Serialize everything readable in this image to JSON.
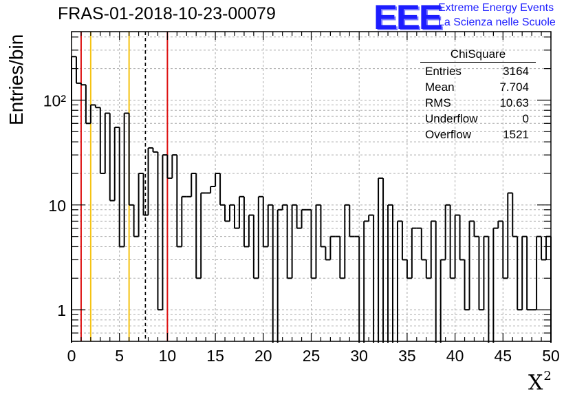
{
  "chart_data": {
    "type": "histogram",
    "title": "FRAS-01-2018-10-23-00079",
    "xlabel": "X",
    "xlabel_superscript": "2",
    "ylabel": "Entries/bin",
    "yscale": "log",
    "xlim": [
      0,
      50
    ],
    "ylim": [
      0.5,
      450
    ],
    "grid": true,
    "bin_width": 0.5,
    "x_ticks": [
      "0",
      "5",
      "10",
      "15",
      "20",
      "25",
      "30",
      "35",
      "40",
      "45",
      "50"
    ],
    "x_tick_values": [
      0,
      5,
      10,
      15,
      20,
      25,
      30,
      35,
      40,
      45,
      50
    ],
    "y_ticks": [
      "1",
      "10",
      "10²"
    ],
    "y_tick_values": [
      1,
      10,
      100
    ],
    "values": [
      260,
      145,
      140,
      60,
      90,
      85,
      20,
      75,
      11,
      55,
      4,
      75,
      10,
      5,
      20,
      8,
      35,
      32,
      1,
      30,
      18,
      30,
      4,
      12,
      12,
      20,
      2,
      13,
      13,
      15,
      20,
      10,
      7,
      10,
      6,
      12,
      4,
      8,
      2,
      12,
      4,
      10,
      0,
      9,
      10,
      2,
      10,
      6,
      9,
      9,
      2,
      10,
      4,
      3,
      5,
      5,
      2,
      10,
      5,
      5,
      0,
      7,
      8,
      0,
      18,
      0,
      10,
      0,
      7,
      3,
      2,
      6,
      6,
      3,
      2,
      7,
      0,
      3,
      10,
      2,
      8,
      3,
      1,
      7,
      5,
      1,
      5,
      0,
      6,
      7,
      2,
      13,
      5,
      1,
      5,
      1,
      1,
      5,
      3,
      5
    ],
    "vertical_lines": [
      {
        "x": 1.0,
        "color": "#dd1111",
        "style": "solid"
      },
      {
        "x": 2.0,
        "color": "#f5c211",
        "style": "solid"
      },
      {
        "x": 6.0,
        "color": "#f5c211",
        "style": "solid"
      },
      {
        "x": 7.704,
        "color": "#000000",
        "style": "dashed"
      },
      {
        "x": 10.0,
        "color": "#dd1111",
        "style": "solid"
      }
    ]
  },
  "logo": {
    "mark": "EEE",
    "line1": "Extreme Energy Events",
    "line2": "La Scienza nelle Scuole",
    "color": "#1d1dff"
  },
  "stats": {
    "title": "ChiSquare",
    "rows": [
      {
        "label": "Entries",
        "value": "3164"
      },
      {
        "label": "Mean",
        "value": "7.704"
      },
      {
        "label": "RMS",
        "value": "10.63"
      },
      {
        "label": "Underflow",
        "value": "0"
      },
      {
        "label": "Overflow",
        "value": "1521"
      }
    ]
  }
}
